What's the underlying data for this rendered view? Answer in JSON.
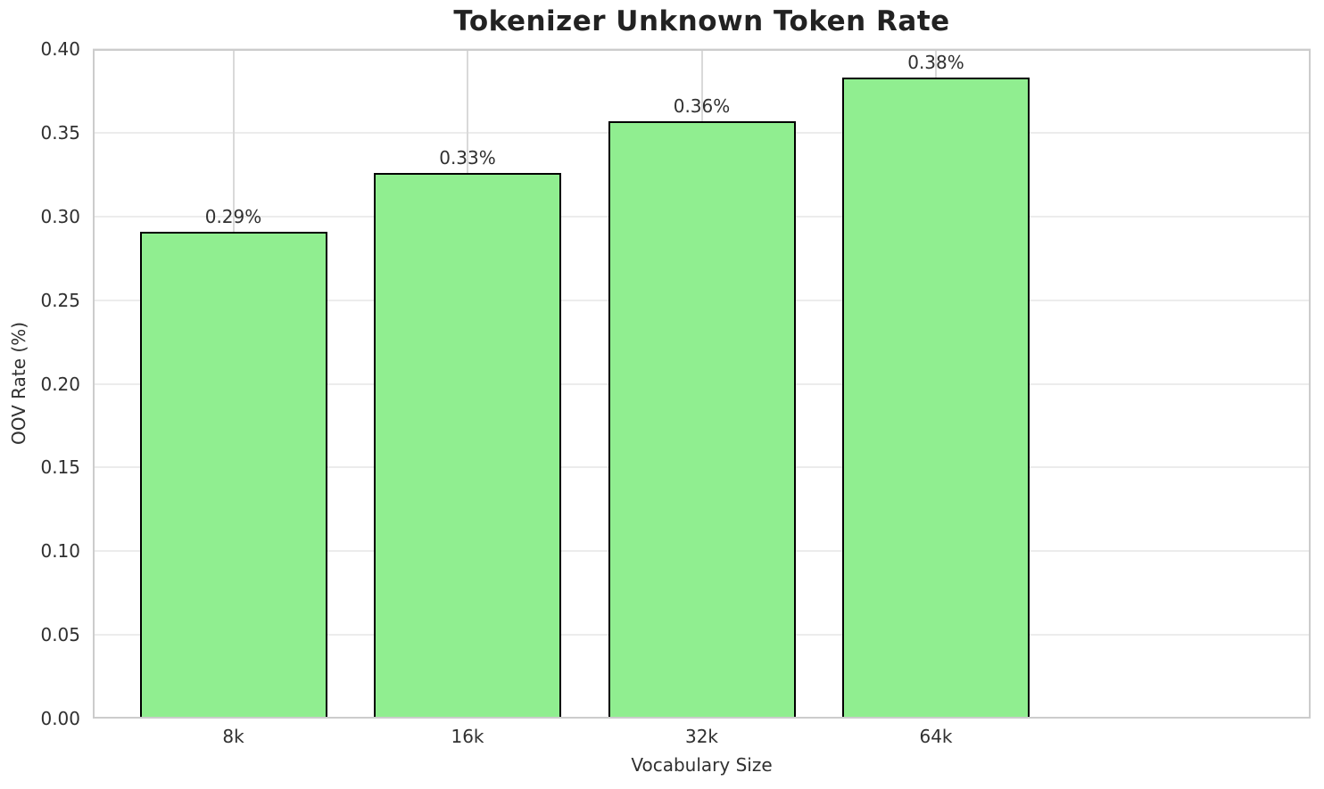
{
  "chart_data": {
    "type": "bar",
    "title": "Tokenizer Unknown Token Rate",
    "xlabel": "Vocabulary Size",
    "ylabel": "OOV Rate (%)",
    "categories": [
      "8k",
      "16k",
      "32k",
      "64k"
    ],
    "values": [
      0.291,
      0.326,
      0.357,
      0.383
    ],
    "bar_value_labels": [
      "0.29%",
      "0.33%",
      "0.36%",
      "0.38%"
    ],
    "ylim": [
      0.0,
      0.4
    ],
    "ytick_step": 0.05,
    "ytick_labels": [
      "0.00",
      "0.05",
      "0.10",
      "0.15",
      "0.20",
      "0.25",
      "0.30",
      "0.35",
      "0.40"
    ],
    "grid": "both",
    "legend": "none",
    "style": {
      "bar_fill": "#90ee90",
      "bar_edge": "#000000",
      "grid_color_horizontal": "#ececec",
      "grid_color_vertical": "#d9d9d9",
      "spine_color": "#cccccc",
      "title_color": "#222222",
      "text_color": "#303030",
      "background": "#ffffff"
    }
  }
}
